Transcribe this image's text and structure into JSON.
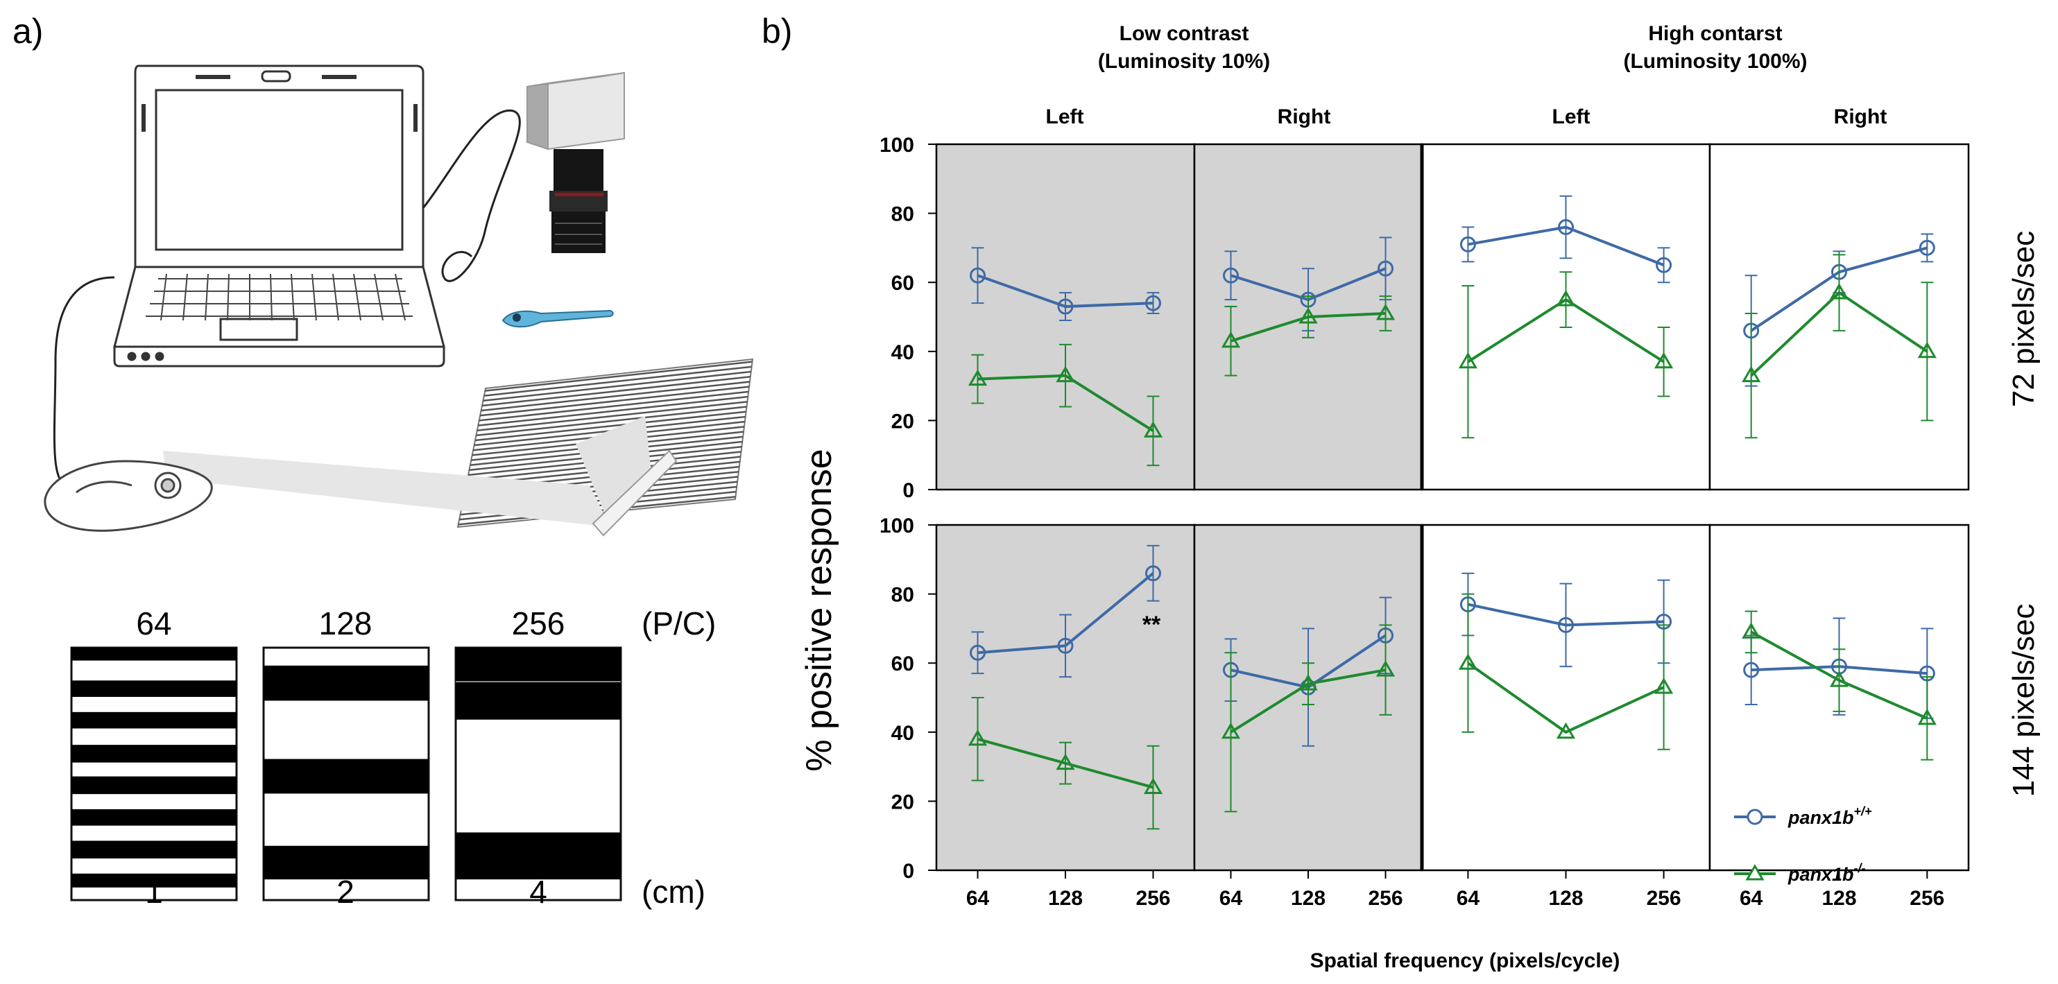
{
  "panel_a": {
    "label": "a)",
    "top_values": [
      "64",
      "128",
      "256"
    ],
    "top_unit": "(P/C)",
    "bottom_values": [
      "1",
      "2",
      "4"
    ],
    "bottom_unit": "(cm)",
    "icons": [
      "laptop-icon",
      "camera-icon",
      "zebrafish-larva-icon",
      "grating-screen-icon",
      "projector-icon"
    ]
  },
  "panel_b": {
    "label": "b)",
    "contrast_groups": [
      {
        "line1": "Low contrast",
        "line2": "(Luminosity 10%)"
      },
      {
        "line1": "High contarst",
        "line2": "(Luminosity 100%)"
      }
    ],
    "column_labels": [
      "Left",
      "Right",
      "Left",
      "Right"
    ],
    "row_labels": [
      "72 pixels/sec",
      "144 pixels/sec"
    ],
    "y_axis_label": "% positive response",
    "x_axis_label": "Spatial frequency (pixels/cycle)",
    "annotation": "**",
    "legend": [
      {
        "base": "panx1b",
        "sup": "+/+"
      },
      {
        "base": "panx1b",
        "sup": "-/-"
      }
    ],
    "colors": {
      "wildtype": "#3e6aa6",
      "knockout": "#1e8a2e",
      "low_contrast_bg": "#d3d3d3"
    }
  },
  "chart_data": {
    "type": "line",
    "x": [
      64,
      128,
      256
    ],
    "x_ticks": [
      "64",
      "128",
      "256"
    ],
    "ylim": [
      0,
      100
    ],
    "y_ticks": [
      "0",
      "20",
      "40",
      "60",
      "80",
      "100"
    ],
    "panels": [
      {
        "speed": "72 pixels/sec",
        "contrast": "Low contrast",
        "side": "Left",
        "series": [
          {
            "name": "panx1b+/+",
            "values": [
              62,
              53,
              54
            ],
            "err": [
              8,
              4,
              3
            ]
          },
          {
            "name": "panx1b-/-",
            "values": [
              32,
              33,
              17
            ],
            "err": [
              7,
              9,
              10
            ]
          }
        ]
      },
      {
        "speed": "72 pixels/sec",
        "contrast": "Low contrast",
        "side": "Right",
        "series": [
          {
            "name": "panx1b+/+",
            "values": [
              62,
              55,
              64
            ],
            "err": [
              7,
              9,
              9
            ]
          },
          {
            "name": "panx1b-/-",
            "values": [
              43,
              50,
              51
            ],
            "err": [
              10,
              6,
              5
            ]
          }
        ]
      },
      {
        "speed": "72 pixels/sec",
        "contrast": "High contrast",
        "side": "Left",
        "series": [
          {
            "name": "panx1b+/+",
            "values": [
              71,
              76,
              65
            ],
            "err": [
              5,
              9,
              5
            ]
          },
          {
            "name": "panx1b-/-",
            "values": [
              37,
              55,
              37
            ],
            "err": [
              22,
              8,
              10
            ]
          }
        ]
      },
      {
        "speed": "72 pixels/sec",
        "contrast": "High contrast",
        "side": "Right",
        "series": [
          {
            "name": "panx1b+/+",
            "values": [
              46,
              63,
              70
            ],
            "err": [
              16,
              6,
              4
            ]
          },
          {
            "name": "panx1b-/-",
            "values": [
              33,
              57,
              40
            ],
            "err": [
              18,
              11,
              20
            ]
          }
        ]
      },
      {
        "speed": "144 pixels/sec",
        "contrast": "Low contrast",
        "side": "Left",
        "series": [
          {
            "name": "panx1b+/+",
            "values": [
              63,
              65,
              86
            ],
            "err": [
              6,
              9,
              8
            ]
          },
          {
            "name": "panx1b-/-",
            "values": [
              38,
              31,
              24
            ],
            "err": [
              12,
              6,
              12
            ]
          }
        ]
      },
      {
        "speed": "144 pixels/sec",
        "contrast": "Low contrast",
        "side": "Right",
        "series": [
          {
            "name": "panx1b+/+",
            "values": [
              58,
              53,
              68
            ],
            "err": [
              9,
              17,
              11
            ]
          },
          {
            "name": "panx1b-/-",
            "values": [
              40,
              54,
              58
            ],
            "err": [
              23,
              6,
              13
            ]
          }
        ]
      },
      {
        "speed": "144 pixels/sec",
        "contrast": "High contrast",
        "side": "Left",
        "series": [
          {
            "name": "panx1b+/+",
            "values": [
              77,
              71,
              72
            ],
            "err": [
              9,
              12,
              12
            ]
          },
          {
            "name": "panx1b-/-",
            "values": [
              60,
              40,
              53
            ],
            "err": [
              20,
              0,
              18
            ]
          }
        ]
      },
      {
        "speed": "144 pixels/sec",
        "contrast": "High contrast",
        "side": "Right",
        "series": [
          {
            "name": "panx1b+/+",
            "values": [
              58,
              59,
              57
            ],
            "err": [
              10,
              14,
              13
            ]
          },
          {
            "name": "panx1b-/-",
            "values": [
              69,
              55,
              44
            ],
            "err": [
              6,
              9,
              12
            ]
          }
        ]
      }
    ]
  }
}
